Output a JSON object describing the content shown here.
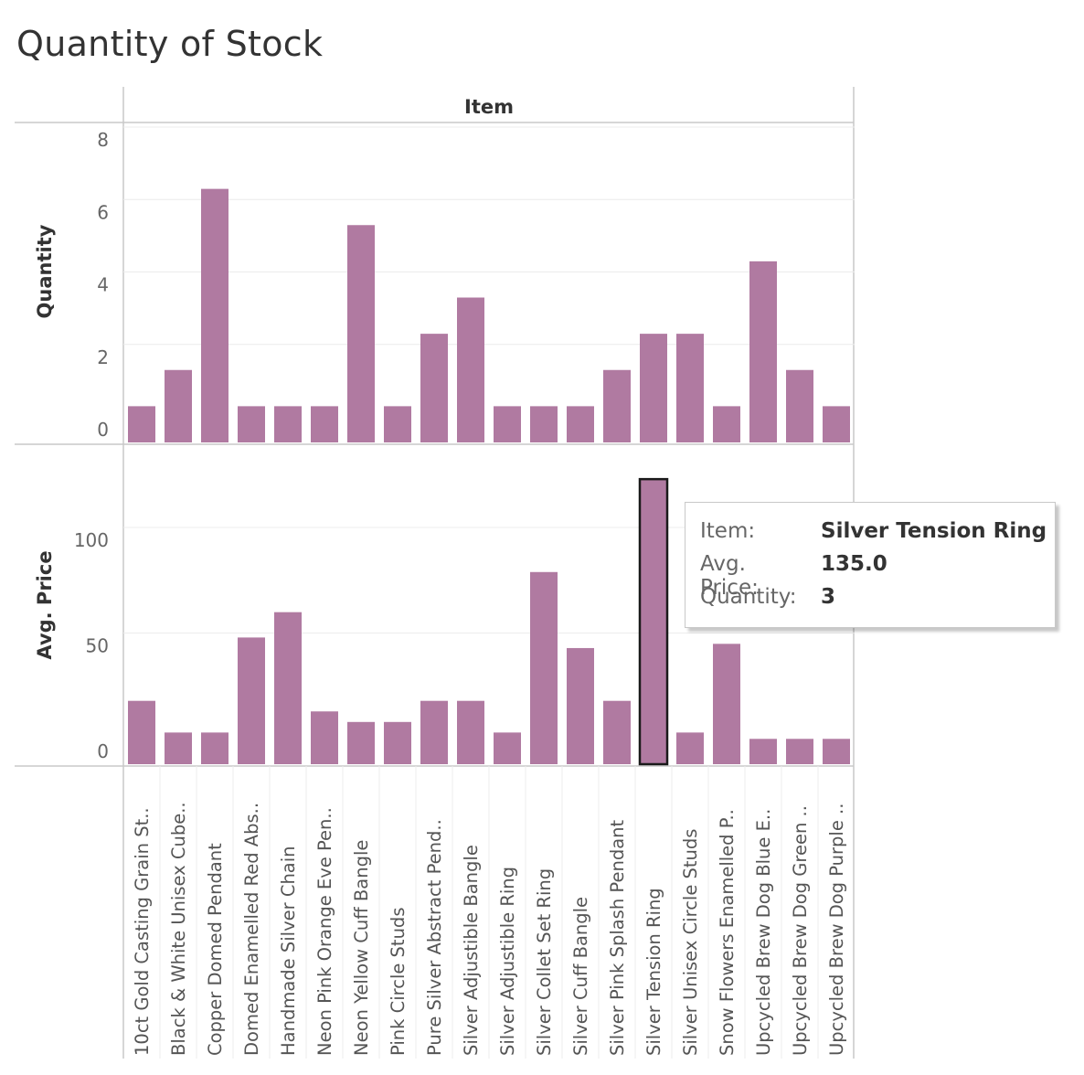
{
  "title": "Quantity of Stock",
  "column_header": "Item",
  "bar_color": "#b07aa1",
  "highlight_outline": "#1a1a1a",
  "tooltip": {
    "rows": [
      {
        "key": "Item:",
        "value": "Silver Tension Ring"
      },
      {
        "key": "Avg. Price:",
        "value": "135.0"
      },
      {
        "key": "Quantity:",
        "value": "3"
      }
    ]
  },
  "chart_data": {
    "type": "bar",
    "categories": [
      "10ct Gold Casting Grain St..",
      "Black & White Unisex Cube..",
      "Copper Domed Pendant",
      "Domed Enamelled Red Abs..",
      "Handmade Silver Chain",
      "Neon Pink Orange Eve Pen..",
      "Neon Yellow Cuff Bangle",
      "Pink Circle Studs",
      "Pure Silver Abstract Pend..",
      "Silver Adjustible Bangle",
      "Silver Adjustible Ring",
      "Silver Collet Set Ring",
      "Silver Cuff Bangle",
      "Silver Pink Splash Pendant",
      "Silver Tension Ring",
      "Silver Unisex Circle Studs",
      "Snow Flowers Enamelled P..",
      "Upcycled Brew Dog Blue E..",
      "Upcycled Brew Dog Green ..",
      "Upcycled Brew Dog Purple .."
    ],
    "panels": [
      {
        "ylabel": "Quantity",
        "ylim": [
          0,
          8
        ],
        "yticks": [
          0,
          2,
          4,
          6,
          8
        ],
        "values": [
          1,
          2,
          7,
          1,
          1,
          1,
          6,
          1,
          3,
          4,
          1,
          1,
          1,
          2,
          3,
          3,
          1,
          5,
          2,
          1
        ]
      },
      {
        "ylabel": "Avg. Price",
        "ylim": [
          0,
          135
        ],
        "yticks": [
          0,
          50,
          100
        ],
        "values": [
          30,
          15,
          15,
          60,
          72,
          25,
          20,
          20,
          30,
          30,
          15,
          91,
          55,
          30,
          135,
          15,
          57,
          12,
          12,
          12
        ]
      }
    ],
    "highlighted_category": "Silver Tension Ring",
    "grid": true,
    "legend": "none"
  }
}
